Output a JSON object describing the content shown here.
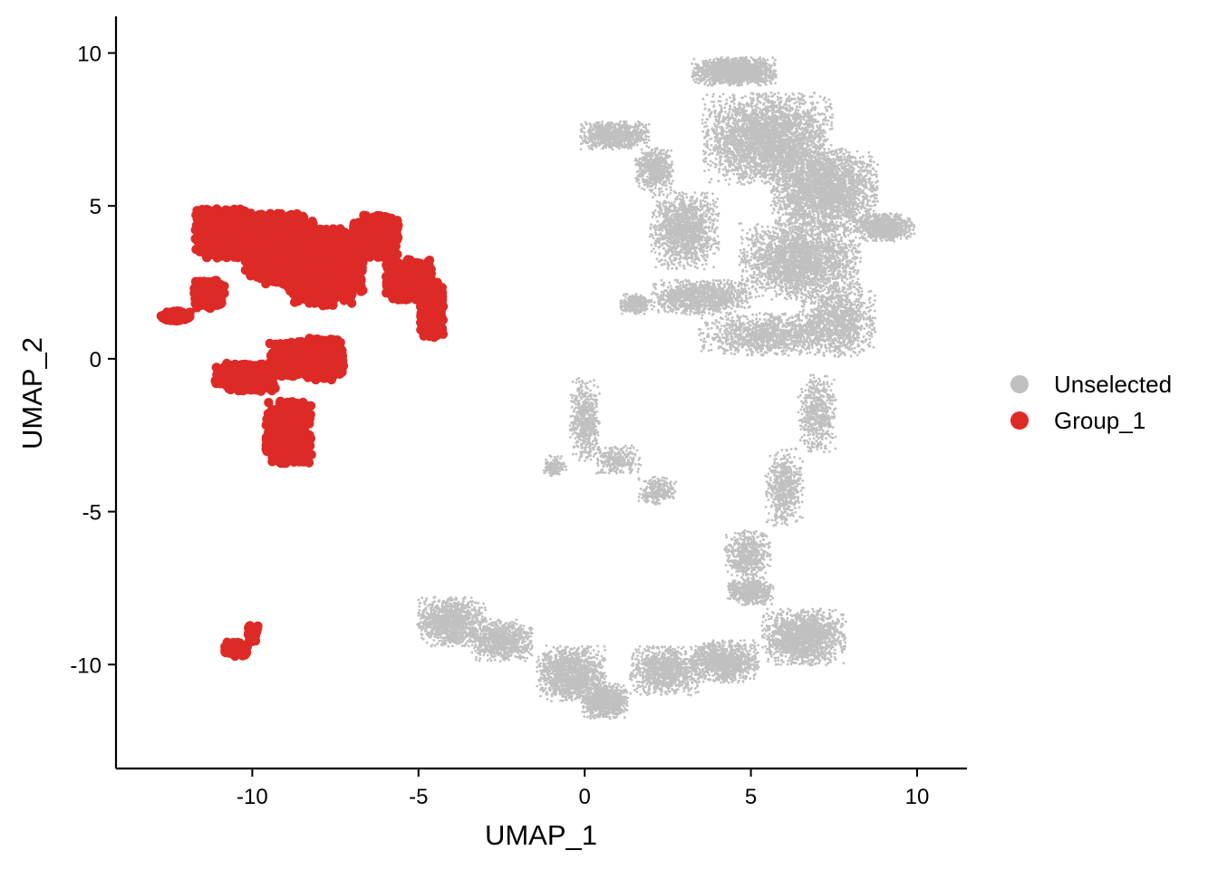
{
  "chart_data": {
    "type": "scatter",
    "xlabel": "UMAP_1",
    "ylabel": "UMAP_2",
    "xlim": [
      -14.1,
      11.5
    ],
    "ylim": [
      -13.4,
      11.2
    ],
    "xticks": [
      -10,
      -5,
      0,
      5,
      10
    ],
    "yticks": [
      10,
      5,
      0,
      -5,
      -10
    ],
    "xtick_labels": [
      "-10",
      "-5",
      "0",
      "5",
      "10"
    ],
    "ytick_labels": [
      "10",
      "5",
      "0",
      "-5",
      "-10"
    ],
    "grid": false,
    "legend_position": "right",
    "legend": [
      {
        "key": "unselected",
        "label": "Unselected",
        "color": "#c0c0c0"
      },
      {
        "key": "group1",
        "label": "Group_1",
        "color": "#de2a26"
      }
    ],
    "series": [
      {
        "name": "Unselected",
        "color": "#c0c0c0",
        "marker": "small",
        "regions": [
          {
            "center": [
              4.5,
              9.4
            ],
            "spread": [
              1.1,
              0.4
            ],
            "weight": 6
          },
          {
            "center": [
              5.5,
              7.2
            ],
            "spread": [
              1.7,
              1.3
            ],
            "weight": 12
          },
          {
            "center": [
              7.2,
              5.5
            ],
            "spread": [
              1.4,
              1.2
            ],
            "weight": 10
          },
          {
            "center": [
              9.0,
              4.3
            ],
            "spread": [
              0.8,
              0.4
            ],
            "weight": 3
          },
          {
            "center": [
              6.5,
              3.2
            ],
            "spread": [
              1.6,
              1.1
            ],
            "weight": 9
          },
          {
            "center": [
              3.0,
              4.2
            ],
            "spread": [
              0.9,
              1.1
            ],
            "weight": 5
          },
          {
            "center": [
              0.9,
              7.3
            ],
            "spread": [
              0.9,
              0.4
            ],
            "weight": 3
          },
          {
            "center": [
              2.1,
              6.2
            ],
            "spread": [
              0.5,
              0.6
            ],
            "weight": 2
          },
          {
            "center": [
              3.5,
              2.0
            ],
            "spread": [
              1.3,
              0.5
            ],
            "weight": 4
          },
          {
            "center": [
              1.5,
              1.8
            ],
            "spread": [
              0.4,
              0.3
            ],
            "weight": 1
          },
          {
            "center": [
              5.4,
              0.8
            ],
            "spread": [
              1.7,
              0.6
            ],
            "weight": 4
          },
          {
            "center": [
              7.6,
              1.2
            ],
            "spread": [
              1.0,
              1.0
            ],
            "weight": 4
          },
          {
            "center": [
              7.0,
              -1.8
            ],
            "spread": [
              0.5,
              1.1
            ],
            "weight": 2
          },
          {
            "center": [
              6.0,
              -4.2
            ],
            "spread": [
              0.5,
              1.1
            ],
            "weight": 2
          },
          {
            "center": [
              4.9,
              -6.4
            ],
            "spread": [
              0.6,
              0.7
            ],
            "weight": 2
          },
          {
            "center": [
              0.0,
              -2.0
            ],
            "spread": [
              0.4,
              1.2
            ],
            "weight": 2
          },
          {
            "center": [
              1.0,
              -3.3
            ],
            "spread": [
              0.6,
              0.4
            ],
            "weight": 1
          },
          {
            "center": [
              -0.9,
              -3.5
            ],
            "spread": [
              0.3,
              0.3
            ],
            "weight": 0.5
          },
          {
            "center": [
              2.2,
              -4.3
            ],
            "spread": [
              0.5,
              0.4
            ],
            "weight": 1
          },
          {
            "center": [
              -4.0,
              -8.6
            ],
            "spread": [
              0.9,
              0.7
            ],
            "weight": 4
          },
          {
            "center": [
              -2.5,
              -9.2
            ],
            "spread": [
              0.8,
              0.6
            ],
            "weight": 3
          },
          {
            "center": [
              -0.4,
              -10.3
            ],
            "spread": [
              0.9,
              0.8
            ],
            "weight": 5
          },
          {
            "center": [
              0.6,
              -11.2
            ],
            "spread": [
              0.6,
              0.5
            ],
            "weight": 3
          },
          {
            "center": [
              2.4,
              -10.2
            ],
            "spread": [
              0.9,
              0.7
            ],
            "weight": 4
          },
          {
            "center": [
              4.2,
              -9.9
            ],
            "spread": [
              0.9,
              0.6
            ],
            "weight": 4
          },
          {
            "center": [
              6.6,
              -9.1
            ],
            "spread": [
              1.1,
              0.8
            ],
            "weight": 6
          },
          {
            "center": [
              5.0,
              -7.6
            ],
            "spread": [
              0.6,
              0.4
            ],
            "weight": 2
          }
        ]
      },
      {
        "name": "Group_1",
        "color": "#de2a26",
        "marker": "large",
        "regions": [
          {
            "center": [
              -10.8,
              4.1
            ],
            "spread": [
              0.8,
              0.7
            ],
            "weight": 6
          },
          {
            "center": [
              -9.2,
              3.6
            ],
            "spread": [
              0.9,
              1.0
            ],
            "weight": 8
          },
          {
            "center": [
              -7.8,
              3.0
            ],
            "spread": [
              1.0,
              1.1
            ],
            "weight": 8
          },
          {
            "center": [
              -6.3,
              4.0
            ],
            "spread": [
              0.6,
              0.6
            ],
            "weight": 5
          },
          {
            "center": [
              -5.3,
              2.6
            ],
            "spread": [
              0.6,
              0.6
            ],
            "weight": 4
          },
          {
            "center": [
              -4.6,
              1.6
            ],
            "spread": [
              0.3,
              0.8
            ],
            "weight": 3
          },
          {
            "center": [
              -12.3,
              1.4
            ],
            "spread": [
              0.4,
              0.15
            ],
            "weight": 1
          },
          {
            "center": [
              -11.3,
              2.1
            ],
            "spread": [
              0.4,
              0.4
            ],
            "weight": 2
          },
          {
            "center": [
              -10.2,
              -0.6
            ],
            "spread": [
              0.8,
              0.4
            ],
            "weight": 3
          },
          {
            "center": [
              -8.8,
              0.0
            ],
            "spread": [
              0.6,
              0.5
            ],
            "weight": 3
          },
          {
            "center": [
              -7.8,
              0.0
            ],
            "spread": [
              0.5,
              0.6
            ],
            "weight": 3
          },
          {
            "center": [
              -8.9,
              -2.4
            ],
            "spread": [
              0.6,
              0.9
            ],
            "weight": 4
          },
          {
            "center": [
              -10.5,
              -9.5
            ],
            "spread": [
              0.3,
              0.2
            ],
            "weight": 1
          },
          {
            "center": [
              -10.0,
              -9.0
            ],
            "spread": [
              0.15,
              0.25
            ],
            "weight": 0.4
          }
        ]
      }
    ]
  }
}
